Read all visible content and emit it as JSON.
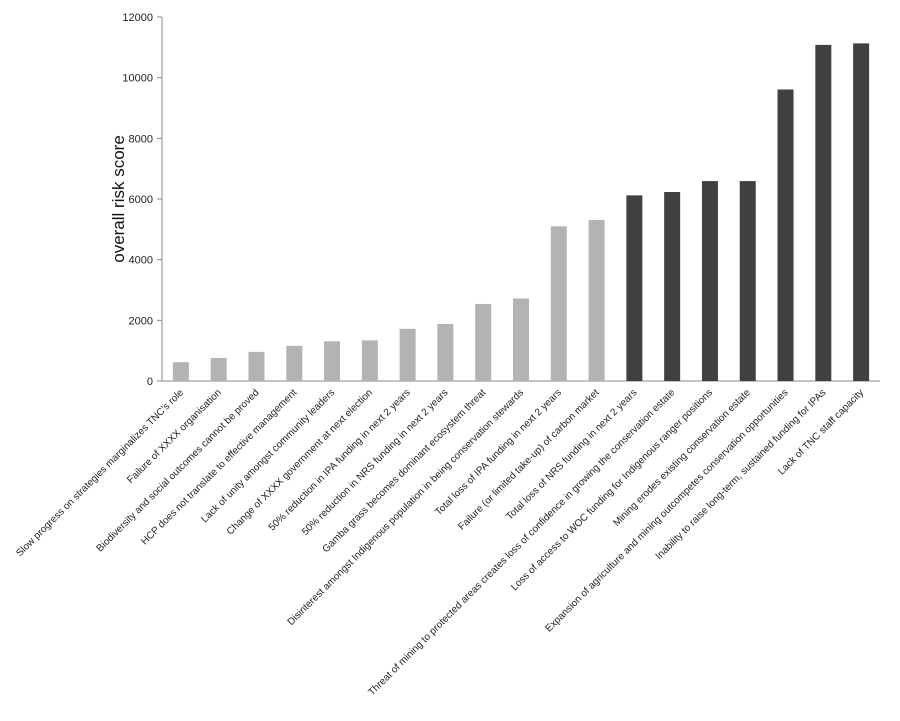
{
  "chart_data": {
    "type": "bar",
    "ylabel": "overall risk score",
    "xlabel": "",
    "ylim": [
      0,
      12000
    ],
    "yticks": [
      0,
      2000,
      4000,
      6000,
      8000,
      10000,
      12000
    ],
    "grid": false,
    "legend": "none",
    "colors": {
      "low": "#b3b3b3",
      "high": "#404040"
    },
    "categories": [
      "Slow progress on strategies marginalizes TNC's role",
      "Failure of XXXX organisation",
      "Biodiversity and social outcomes cannot be proved",
      "HCP does not translate to effective management",
      "Lack of unity amongst community leaders",
      "Change of XXXX government at next election",
      "50% reduction in IPA funding in next 2 years",
      "50% reduction in NRS funding in next 2 years",
      "Gamba grass becomes dominant ecosystem threat",
      "Disinterest amongst Indigenous population in being conservation stewards",
      "Total loss of IPA funding in next 2 years",
      "Failure (or limited take-up) of carbon market",
      "Total loss of NRS funding in next 2 years",
      "Threat of mining to protected areas creates loss of confidence in growing the conservation estate",
      "Loss of access to WOC funding for Indigenous ranger positions",
      "Mining erodes existing conservation estate",
      "Expansion of agriculture and mining outcompetes conservation opportunities",
      "Inability to raise long-term, sustained funding for IPAs",
      "Lack of TNC staff capacity"
    ],
    "values": [
      620,
      760,
      960,
      1160,
      1310,
      1340,
      1720,
      1880,
      2540,
      2720,
      5100,
      5310,
      6120,
      6230,
      6590,
      6590,
      9610,
      11080,
      11130
    ],
    "bar_color_group": [
      "low",
      "low",
      "low",
      "low",
      "low",
      "low",
      "low",
      "low",
      "low",
      "low",
      "low",
      "low",
      "high",
      "high",
      "high",
      "high",
      "high",
      "high",
      "high"
    ]
  }
}
